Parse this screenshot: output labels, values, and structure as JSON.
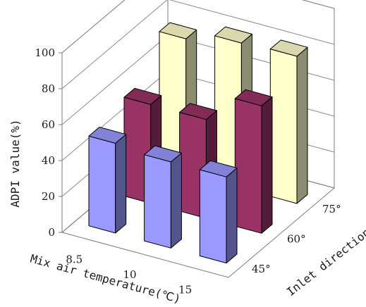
{
  "chart_data": {
    "type": "bar",
    "subtype": "3d-grouped-bar",
    "title": "",
    "xlabel": "Mix air temperature(℃)",
    "zlabel": "Inlet direction",
    "ylabel": "ADPI value(%)",
    "ylim": [
      0,
      100
    ],
    "yticks": [
      "0",
      "20",
      "40",
      "60",
      "80",
      "100"
    ],
    "categories": [
      "8.5",
      "10",
      "15"
    ],
    "grid": true,
    "series": [
      {
        "name": "45°",
        "color": "#9999ff",
        "values": [
          50,
          48,
          48
        ]
      },
      {
        "name": "60°",
        "color": "#993366",
        "values": [
          55,
          55,
          71
        ]
      },
      {
        "name": "75°",
        "color": "#ffffcc",
        "values": [
          75,
          81,
          82
        ]
      }
    ]
  }
}
